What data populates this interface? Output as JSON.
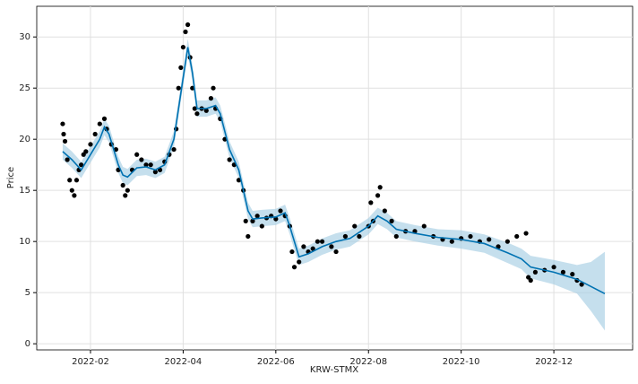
{
  "chart_data": {
    "type": "forecast",
    "x_label": "KRW-STMX",
    "y_label": "Price",
    "xlim": [
      0.84,
      13.7
    ],
    "xticks": [
      {
        "value": 2,
        "label": "2022-02"
      },
      {
        "value": 4,
        "label": "2022-04"
      },
      {
        "value": 6,
        "label": "2022-06"
      },
      {
        "value": 8,
        "label": "2022-08"
      },
      {
        "value": 10,
        "label": "2022-10"
      },
      {
        "value": 12,
        "label": "2022-12"
      }
    ],
    "ylim": [
      -0.6,
      33
    ],
    "yticks": [
      0,
      5,
      10,
      15,
      20,
      25,
      30
    ],
    "grid": true,
    "observed": {
      "color": "#000000",
      "x": [
        1.4,
        1.42,
        1.45,
        1.5,
        1.55,
        1.6,
        1.65,
        1.7,
        1.75,
        1.8,
        1.85,
        1.9,
        2.0,
        2.1,
        2.2,
        2.3,
        2.35,
        2.45,
        2.55,
        2.6,
        2.7,
        2.75,
        2.8,
        2.9,
        3.0,
        3.1,
        3.2,
        3.3,
        3.4,
        3.5,
        3.6,
        3.7,
        3.8,
        3.85,
        3.9,
        3.95,
        4.0,
        4.05,
        4.1,
        4.15,
        4.2,
        4.25,
        4.3,
        4.4,
        4.5,
        4.6,
        4.65,
        4.7,
        4.8,
        4.9,
        5.0,
        5.1,
        5.2,
        5.3,
        5.35,
        5.4,
        5.5,
        5.6,
        5.7,
        5.8,
        5.9,
        6.0,
        6.1,
        6.2,
        6.3,
        6.35,
        6.4,
        6.5,
        6.6,
        6.7,
        6.8,
        6.9,
        7.0,
        7.2,
        7.3,
        7.5,
        7.7,
        7.8,
        8.0,
        8.05,
        8.1,
        8.2,
        8.25,
        8.35,
        8.5,
        8.6,
        8.8,
        9.0,
        9.2,
        9.4,
        9.6,
        9.8,
        10.0,
        10.2,
        10.4,
        10.6,
        10.8,
        11.0,
        11.2,
        11.4,
        11.45,
        11.5,
        11.6,
        11.8,
        12.0,
        12.2,
        12.4,
        12.5,
        12.6
      ],
      "values": [
        21.5,
        20.5,
        19.8,
        18,
        16,
        15,
        14.5,
        16,
        17,
        17.5,
        18.5,
        18.8,
        19.5,
        20.5,
        21.5,
        22,
        21,
        19.5,
        19,
        17,
        15.5,
        14.5,
        15,
        17,
        18.5,
        18,
        17.5,
        17.5,
        16.8,
        17,
        17.8,
        18.5,
        19,
        21,
        25,
        27,
        29,
        30.5,
        31.2,
        28,
        25,
        23,
        22.5,
        23,
        22.8,
        24,
        25,
        23,
        22,
        20,
        18,
        17.5,
        16,
        15,
        12,
        10.5,
        12,
        12.5,
        11.5,
        12.3,
        12.5,
        12.2,
        13,
        12.5,
        11.5,
        9,
        7.5,
        8,
        9.5,
        9,
        9.3,
        10,
        10,
        9.5,
        9,
        10.5,
        11.5,
        10.5,
        11.5,
        13.8,
        12,
        14.5,
        15.3,
        13,
        12,
        10.5,
        11,
        11,
        11.5,
        10.5,
        10.2,
        10,
        10.3,
        10.5,
        10,
        10.2,
        9.5,
        10,
        10.5,
        10.8,
        6.5,
        6.2,
        7,
        7.2,
        7.5,
        7,
        6.8,
        6.2,
        5.8
      ]
    },
    "forecast": {
      "color": "#0072b2",
      "band_color": "#a6cee3",
      "x": [
        1.4,
        1.6,
        1.8,
        2.0,
        2.2,
        2.3,
        2.4,
        2.6,
        2.7,
        2.8,
        3.0,
        3.2,
        3.4,
        3.6,
        3.8,
        3.9,
        4.0,
        4.1,
        4.2,
        4.3,
        4.5,
        4.7,
        4.8,
        5.0,
        5.2,
        5.4,
        5.5,
        5.7,
        6.0,
        6.2,
        6.3,
        6.5,
        6.7,
        7.0,
        7.3,
        7.6,
        8.0,
        8.2,
        8.4,
        8.6,
        9.0,
        9.5,
        10.0,
        10.5,
        11.0,
        11.3,
        11.5,
        12.0,
        12.5,
        12.8,
        13.1
      ],
      "values": [
        18.8,
        18,
        17,
        18.5,
        20,
        21.2,
        20.5,
        17.5,
        16.5,
        16.3,
        17.2,
        17.3,
        17,
        17.5,
        20,
        23,
        26,
        29,
        26.5,
        23,
        23,
        23.3,
        22.5,
        19,
        17,
        13,
        12.2,
        12.3,
        12.4,
        12.8,
        11.5,
        8.5,
        8.8,
        9.5,
        10,
        10.3,
        11.5,
        12.5,
        12,
        11.2,
        10.8,
        10.4,
        10.2,
        9.8,
        8.9,
        8.3,
        7.5,
        7,
        6.3,
        5.6,
        4.9
      ],
      "lower": [
        18,
        17.2,
        16.2,
        17.7,
        19.2,
        20.4,
        19.7,
        16.7,
        15.7,
        15.5,
        16.4,
        16.5,
        16.2,
        16.7,
        19.2,
        22.2,
        25.2,
        28.2,
        25.7,
        22.2,
        22.2,
        22.5,
        21.7,
        18.2,
        16.2,
        12.2,
        11.4,
        11.5,
        11.6,
        12,
        10.7,
        7.7,
        8,
        8.7,
        9.2,
        9.5,
        10.7,
        11.7,
        11.2,
        10.4,
        10,
        9.6,
        9.3,
        8.9,
        7.9,
        7.3,
        6.4,
        5.8,
        4.9,
        3.2,
        1.3
      ],
      "upper": [
        19.6,
        18.8,
        17.8,
        19.3,
        20.8,
        22,
        21.3,
        18.3,
        17.3,
        17.1,
        18,
        18.1,
        17.8,
        18.3,
        20.8,
        23.8,
        26.8,
        29.8,
        27.3,
        23.8,
        23.8,
        24.1,
        23.3,
        19.8,
        17.8,
        13.8,
        13,
        13.1,
        13.2,
        13.6,
        12.3,
        9.3,
        9.6,
        10.3,
        10.8,
        11.1,
        12.3,
        13.3,
        12.8,
        12,
        11.6,
        11.2,
        11.1,
        10.7,
        9.9,
        9.3,
        8.6,
        8.2,
        7.7,
        8,
        9
      ]
    }
  }
}
